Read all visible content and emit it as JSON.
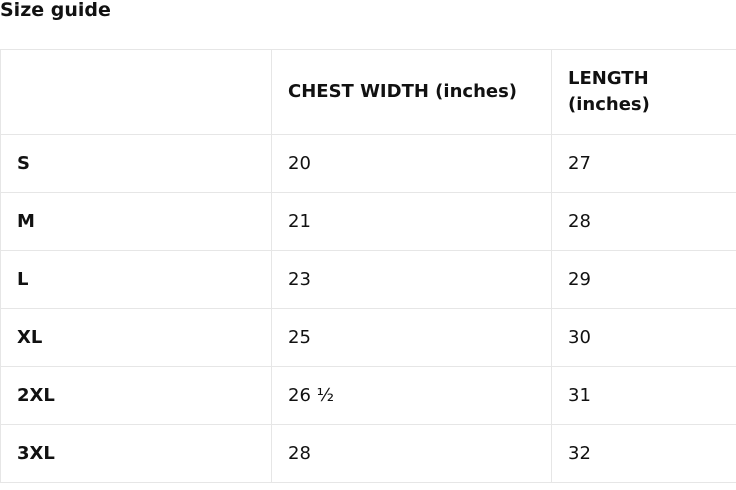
{
  "title": "Size guide",
  "table": {
    "headers": [
      "",
      "CHEST WIDTH (inches)",
      "LENGTH (inches)"
    ],
    "rows": [
      {
        "size": "S",
        "chest": "20",
        "length": "27"
      },
      {
        "size": "M",
        "chest": "21",
        "length": "28"
      },
      {
        "size": "L",
        "chest": "23",
        "length": "29"
      },
      {
        "size": "XL",
        "chest": "25",
        "length": "30"
      },
      {
        "size": "2XL",
        "chest": "26 ½",
        "length": "31"
      },
      {
        "size": "3XL",
        "chest": "28",
        "length": "32"
      }
    ]
  }
}
